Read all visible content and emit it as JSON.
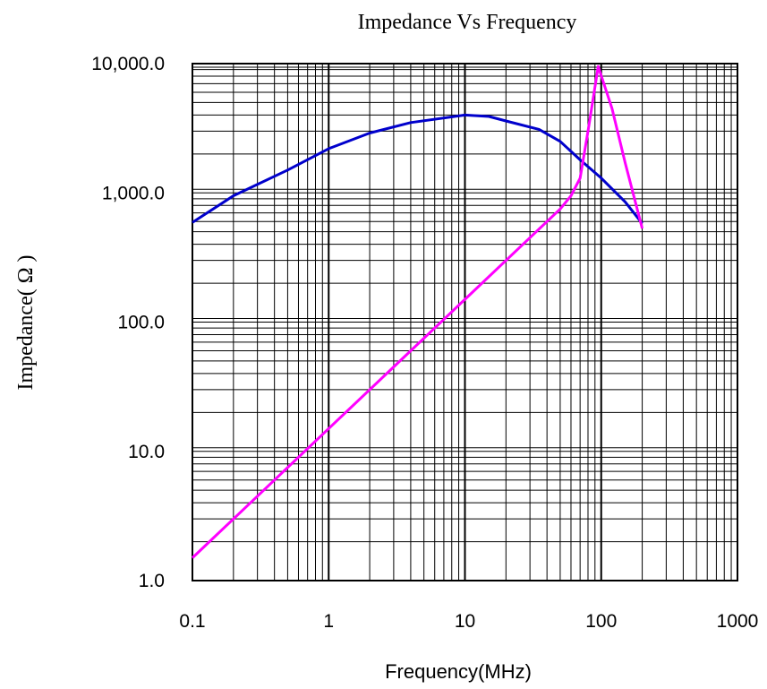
{
  "chart_data": {
    "type": "line",
    "title": "Impedance   Vs  Frequency",
    "xlabel": "Frequency(MHz)",
    "ylabel": "Impedance( Ω )",
    "x_scale": "log",
    "y_scale": "log",
    "xlim": [
      0.1,
      1000
    ],
    "ylim": [
      1,
      10000
    ],
    "x_tick_labels": [
      "0.1",
      "1",
      "10",
      "100",
      "1000"
    ],
    "y_tick_labels": [
      "1.0",
      "10.0",
      "100.0",
      "1,000.0",
      "10,000.0"
    ],
    "grid": true,
    "series": [
      {
        "color": "#0000cc",
        "x": [
          0.1,
          0.2,
          0.5,
          1,
          2,
          4,
          10,
          15,
          20,
          35,
          50,
          70,
          100,
          150,
          200
        ],
        "y": [
          590,
          950,
          1500,
          2200,
          2900,
          3500,
          4000,
          3900,
          3600,
          3100,
          2500,
          1800,
          1300,
          850,
          580
        ]
      },
      {
        "color": "#ff00ff",
        "x": [
          0.1,
          0.3,
          1,
          3,
          10,
          30,
          50,
          60,
          70,
          80,
          95,
          120,
          150,
          200
        ],
        "y": [
          1.5,
          4.5,
          15,
          45,
          150,
          450,
          750,
          950,
          1300,
          3000,
          9500,
          4500,
          1700,
          530
        ]
      }
    ]
  }
}
